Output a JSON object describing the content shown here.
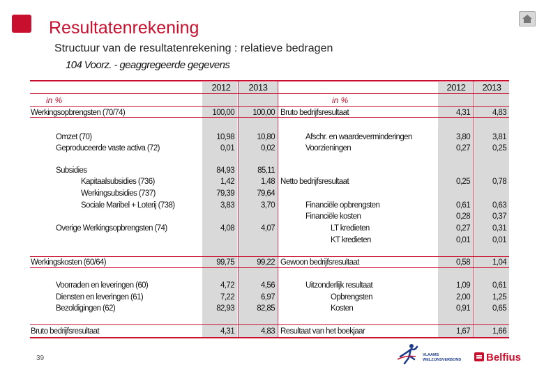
{
  "header": {
    "title": "Resultatenrekening",
    "subtitle": "Structuur van de resultatenrekening : relatieve bedragen",
    "section": "104 Voorz. - geaggregeerde gegevens"
  },
  "table": {
    "years": [
      "2012",
      "2013"
    ],
    "unit": "in %",
    "left_rows": [
      {
        "label": "Werkingsopbrengsten (70/74)",
        "v2012": "100,00",
        "v2013": "100,00"
      },
      {
        "label": "Omzet (70)",
        "v2012": "10,98",
        "v2013": "10,80"
      },
      {
        "label": "Geproduceerde vaste activa (72)",
        "v2012": "0,01",
        "v2013": "0,02"
      },
      {
        "label": "Subsidies",
        "v2012": "84,93",
        "v2013": "85,11"
      },
      {
        "label": "Kapitaalsubsidies (736)",
        "v2012": "1,42",
        "v2013": "1,48"
      },
      {
        "label": "Werkingsubsidies (737)",
        "v2012": "79,39",
        "v2013": "79,64"
      },
      {
        "label": "Sociale Maribel + Loterij (738)",
        "v2012": "3,83",
        "v2013": "3,70"
      },
      {
        "label": "Overige Werkingsopbrengsten (74)",
        "v2012": "4,08",
        "v2013": "4,07"
      },
      {
        "label": "Werkingskosten (60/64)",
        "v2012": "99,75",
        "v2013": "99,22"
      },
      {
        "label": "Voorraden en leveringen (60)",
        "v2012": "4,72",
        "v2013": "4,56"
      },
      {
        "label": "Diensten en leveringen (61)",
        "v2012": "7,22",
        "v2013": "6,97"
      },
      {
        "label": "Bezoldigingen (62)",
        "v2012": "82,93",
        "v2013": "82,85"
      },
      {
        "label": "Bruto bedrijfsresultaat",
        "v2012": "4,31",
        "v2013": "4,83"
      }
    ],
    "right_rows": [
      {
        "label": "Bruto bedrijfsresultaat",
        "v2012": "4,31",
        "v2013": "4,83"
      },
      {
        "label": "Afschr. en waardeverminderingen",
        "v2012": "3,80",
        "v2013": "3,81"
      },
      {
        "label": "Voorzieningen",
        "v2012": "0,27",
        "v2013": "0,25"
      },
      {
        "label": "Netto bedrijfsresultaat",
        "v2012": "0,25",
        "v2013": "0,78"
      },
      {
        "label": "Financiële opbrengsten",
        "v2012": "0,61",
        "v2013": "0,63"
      },
      {
        "label": "Financiële kosten",
        "v2012": "0,28",
        "v2013": "0,37"
      },
      {
        "label": "LT kredieten",
        "v2012": "0,27",
        "v2013": "0,31"
      },
      {
        "label": "KT kredieten",
        "v2012": "0,01",
        "v2013": "0,01"
      },
      {
        "label": "Gewoon bedrijfsresultaat",
        "v2012": "0,58",
        "v2013": "1,04"
      },
      {
        "label": "Uitzonderlijk resultaat",
        "v2012": "1,09",
        "v2013": "0,61"
      },
      {
        "label": "Opbrengsten",
        "v2012": "2,00",
        "v2013": "1,25"
      },
      {
        "label": "Kosten",
        "v2012": "0,91",
        "v2013": "0,65"
      },
      {
        "label": "Resultaat van het boekjaar",
        "v2012": "1,67",
        "v2013": "1,66"
      }
    ]
  },
  "footer": {
    "page_number": "39",
    "brand": "Belfius",
    "partner_logo_text": "VLAAMS WELZIJNSVERBOND"
  },
  "colors": {
    "accent": "#c8102e",
    "column_shade": "#d9d9d9"
  },
  "icons": [
    "home-icon"
  ]
}
